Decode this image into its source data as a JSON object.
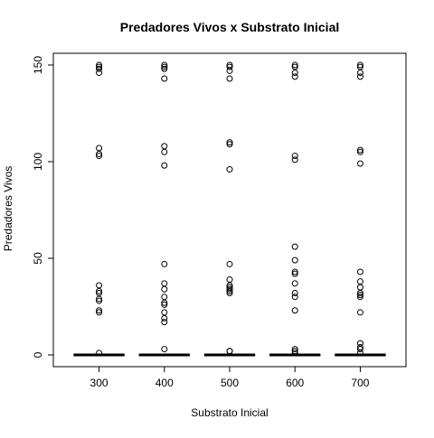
{
  "chart_data": {
    "type": "box",
    "title": "Predadores Vivos x Substrato Inicial",
    "xlabel": "Substrato Inicial",
    "ylabel": "Predadores Vivos",
    "categories": [
      "300",
      "400",
      "500",
      "600",
      "700"
    ],
    "ylim": [
      -5,
      155
    ],
    "yticks": [
      0,
      50,
      100,
      150
    ],
    "grid": false,
    "legend": "none",
    "colors": {
      "outline": "#000000",
      "median": "#000000",
      "background": "#ffffff"
    },
    "boxes": [
      {
        "category": "300",
        "median": 0,
        "q1": 0,
        "q3": 0,
        "whisker_low": 0,
        "whisker_high": 0,
        "outliers": [
          150,
          149,
          148,
          146,
          107,
          104,
          103,
          36,
          33,
          32,
          29,
          28,
          23,
          22,
          1
        ]
      },
      {
        "category": "400",
        "median": 0,
        "q1": 0,
        "q3": 0,
        "whisker_low": 0,
        "whisker_high": 0,
        "outliers": [
          150,
          149,
          148,
          143,
          108,
          105,
          98,
          47,
          37,
          34,
          30,
          27,
          26,
          22,
          19,
          17,
          3
        ]
      },
      {
        "category": "500",
        "median": 0,
        "q1": 0,
        "q3": 0,
        "whisker_low": 0,
        "whisker_high": 0,
        "outliers": [
          150,
          149,
          147,
          143,
          110,
          109,
          96,
          47,
          39,
          36,
          35,
          34,
          33,
          32,
          2,
          2
        ]
      },
      {
        "category": "600",
        "median": 0,
        "q1": 0,
        "q3": 0,
        "whisker_low": 0,
        "whisker_high": 0,
        "outliers": [
          150,
          149,
          146,
          144,
          103,
          101,
          56,
          49,
          43,
          42,
          37,
          32,
          30,
          23,
          3,
          2,
          1
        ]
      },
      {
        "category": "700",
        "median": 0,
        "q1": 0,
        "q3": 0,
        "whisker_low": 0,
        "whisker_high": 0,
        "outliers": [
          150,
          149,
          146,
          144,
          106,
          105,
          99,
          43,
          38,
          35,
          32,
          31,
          30,
          22,
          6,
          4,
          3,
          1
        ]
      }
    ]
  }
}
